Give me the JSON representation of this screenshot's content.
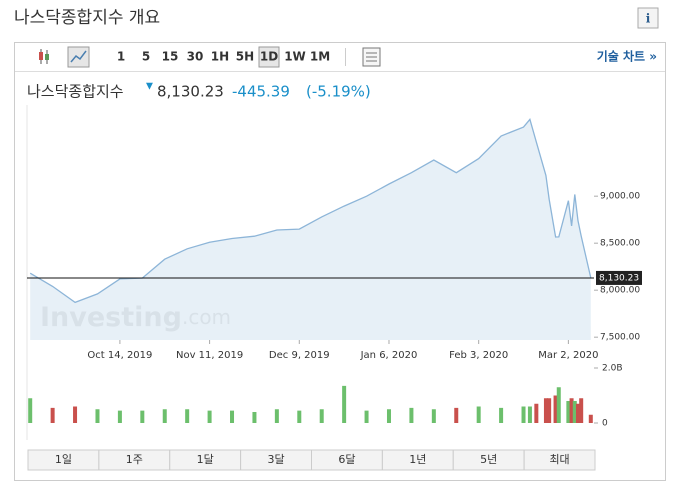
{
  "header": {
    "title": "나스닥종합지수 개요"
  },
  "toolbar": {
    "intervals": [
      "1",
      "5",
      "15",
      "30",
      "1H",
      "5H",
      "1D",
      "1W",
      "1M"
    ],
    "selected_interval": "1D",
    "technical_link": "기술 차트 »"
  },
  "quote": {
    "name": "나스닥종합지수",
    "price": "8,130.23",
    "change": "-445.39",
    "change_percent": "(-5.19%)"
  },
  "watermark": {
    "brand": "Investing",
    "suffix": ".com"
  },
  "chart_data": [
    {
      "type": "area",
      "x": [
        "2019-09-16",
        "2019-09-23",
        "2019-09-30",
        "2019-10-07",
        "2019-10-14",
        "2019-10-21",
        "2019-10-28",
        "2019-11-04",
        "2019-11-11",
        "2019-11-18",
        "2019-11-25",
        "2019-12-02",
        "2019-12-09",
        "2019-12-16",
        "2019-12-23",
        "2019-12-30",
        "2020-01-06",
        "2020-01-13",
        "2020-01-20",
        "2020-01-27",
        "2020-02-03",
        "2020-02-10",
        "2020-02-17",
        "2020-02-19",
        "2020-02-21",
        "2020-02-24",
        "2020-02-25",
        "2020-02-27",
        "2020-02-28",
        "2020-03-02",
        "2020-03-03",
        "2020-03-04",
        "2020-03-05",
        "2020-03-06",
        "2020-03-09"
      ],
      "values": [
        8181,
        8040,
        7870,
        7960,
        8120,
        8128,
        8330,
        8440,
        8510,
        8550,
        8574,
        8640,
        8650,
        8780,
        8895,
        9000,
        9130,
        9250,
        9385,
        9250,
        9400,
        9640,
        9735,
        9817,
        9577,
        9221,
        8965,
        8566,
        8567,
        8952,
        8684,
        9018,
        8738,
        8575,
        8130.23
      ],
      "color": "#8db5d8",
      "fill": "#e3edf6",
      "xlim": [
        "2019-09-15",
        "2020-03-10"
      ],
      "xticks": [
        {
          "value": "2019-10-14",
          "label": "Oct 14, 2019"
        },
        {
          "value": "2019-11-11",
          "label": "Nov 11, 2019"
        },
        {
          "value": "2019-12-09",
          "label": "Dec 9, 2019"
        },
        {
          "value": "2020-01-06",
          "label": "Jan 6, 2020"
        },
        {
          "value": "2020-02-03",
          "label": "Feb 3, 2020"
        },
        {
          "value": "2020-03-02",
          "label": "Mar 2, 2020"
        }
      ],
      "ylim": [
        7470,
        9970
      ],
      "yticks": [
        {
          "value": 7500,
          "label": "7,500.00"
        },
        {
          "value": 8000,
          "label": "8,000.00"
        },
        {
          "value": 8500,
          "label": "8,500.00"
        },
        {
          "value": 9000,
          "label": "9,000.00"
        }
      ],
      "reference_line": {
        "value": 8130.23,
        "label": "8,130.23"
      }
    },
    {
      "type": "bar",
      "values": [
        0.9,
        0.55,
        0.6,
        0.5,
        0.45,
        0.45,
        0.5,
        0.5,
        0.45,
        0.45,
        0.4,
        0.5,
        0.45,
        0.5,
        1.35,
        0.45,
        0.5,
        0.55,
        0.5,
        0.55,
        0.6,
        0.55,
        0.6,
        0.6,
        0.7,
        0.9,
        0.9,
        1.0,
        1.3,
        0.8,
        0.9,
        0.8,
        0.7,
        0.9,
        0.3
      ],
      "up_color": "#6cbf6c",
      "down_color": "#c9504c",
      "ylim": [
        0,
        2.0
      ],
      "yticks": [
        0,
        {
          "value": 2.0,
          "label": "2.0B"
        }
      ]
    }
  ],
  "ranges": [
    "1일",
    "1주",
    "1달",
    "3달",
    "6달",
    "1년",
    "5년",
    "최대"
  ]
}
